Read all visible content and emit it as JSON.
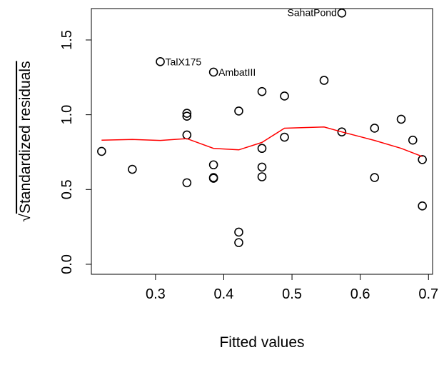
{
  "chart_data": {
    "type": "scatter",
    "title": "",
    "xlabel": "Fitted values",
    "ylabel": "Standardized residuals",
    "ylabel_prefix": "√",
    "xlim": [
      0.206,
      0.706
    ],
    "ylim": [
      -0.067,
      1.71
    ],
    "xticks": [
      0.3,
      0.4,
      0.5,
      0.6,
      0.7
    ],
    "yticks": [
      0.0,
      0.5,
      1.0,
      1.5
    ],
    "xtick_labels": [
      "0.3",
      "0.4",
      "0.5",
      "0.6",
      "0.7"
    ],
    "ytick_labels": [
      "0.0",
      "0.5",
      "1.0",
      "1.5"
    ],
    "grid": false,
    "point_color": "#000000",
    "smooth_color": "#ff0000",
    "points": [
      {
        "x": 0.221,
        "y": 0.755
      },
      {
        "x": 0.266,
        "y": 0.635
      },
      {
        "x": 0.307,
        "y": 1.355
      },
      {
        "x": 0.346,
        "y": 1.01
      },
      {
        "x": 0.346,
        "y": 0.99
      },
      {
        "x": 0.346,
        "y": 0.865
      },
      {
        "x": 0.346,
        "y": 0.545
      },
      {
        "x": 0.385,
        "y": 1.285
      },
      {
        "x": 0.385,
        "y": 0.665
      },
      {
        "x": 0.385,
        "y": 0.575
      },
      {
        "x": 0.385,
        "y": 0.58
      },
      {
        "x": 0.422,
        "y": 1.025
      },
      {
        "x": 0.422,
        "y": 0.215
      },
      {
        "x": 0.422,
        "y": 0.145
      },
      {
        "x": 0.456,
        "y": 1.155
      },
      {
        "x": 0.456,
        "y": 0.775
      },
      {
        "x": 0.456,
        "y": 0.65
      },
      {
        "x": 0.456,
        "y": 0.585
      },
      {
        "x": 0.489,
        "y": 1.125
      },
      {
        "x": 0.489,
        "y": 0.85
      },
      {
        "x": 0.547,
        "y": 1.23
      },
      {
        "x": 0.573,
        "y": 1.68
      },
      {
        "x": 0.573,
        "y": 0.885
      },
      {
        "x": 0.621,
        "y": 0.91
      },
      {
        "x": 0.621,
        "y": 0.58
      },
      {
        "x": 0.66,
        "y": 0.97
      },
      {
        "x": 0.677,
        "y": 0.83
      },
      {
        "x": 0.691,
        "y": 0.7
      },
      {
        "x": 0.691,
        "y": 0.39
      }
    ],
    "smooth_line": [
      {
        "x": 0.221,
        "y": 0.83
      },
      {
        "x": 0.266,
        "y": 0.835
      },
      {
        "x": 0.307,
        "y": 0.828
      },
      {
        "x": 0.346,
        "y": 0.84
      },
      {
        "x": 0.385,
        "y": 0.775
      },
      {
        "x": 0.422,
        "y": 0.765
      },
      {
        "x": 0.456,
        "y": 0.815
      },
      {
        "x": 0.489,
        "y": 0.91
      },
      {
        "x": 0.547,
        "y": 0.918
      },
      {
        "x": 0.573,
        "y": 0.885
      },
      {
        "x": 0.621,
        "y": 0.828
      },
      {
        "x": 0.66,
        "y": 0.775
      },
      {
        "x": 0.691,
        "y": 0.72
      }
    ],
    "annotations": [
      {
        "text": "SahatPond",
        "x": 0.573,
        "y": 1.68
      },
      {
        "text": "TalX175",
        "x": 0.307,
        "y": 1.355
      },
      {
        "text": "AmbatIII",
        "x": 0.385,
        "y": 1.285
      }
    ]
  }
}
